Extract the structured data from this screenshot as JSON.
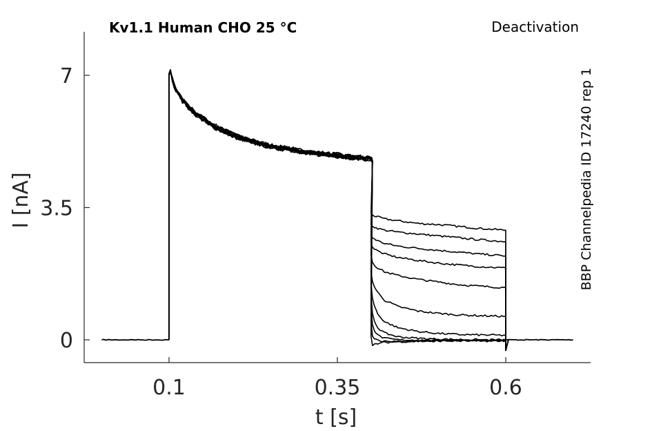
{
  "chart_data": {
    "type": "line",
    "title": "Kv1.1  Human  CHO  25 °C",
    "protocol": "Deactivation",
    "side_label": "BBP Channelpedia ID 17240 rep 1",
    "xlabel": "t [s]",
    "ylabel": "I [nA]",
    "x_ticks": [
      {
        "value": 0.1,
        "label": "0.1"
      },
      {
        "value": 0.35,
        "label": "0.35"
      },
      {
        "value": 0.6,
        "label": "0.6"
      }
    ],
    "y_ticks": [
      {
        "value": 0,
        "label": "0"
      },
      {
        "value": 3.5,
        "label": "3.5"
      },
      {
        "value": 7,
        "label": "7"
      }
    ],
    "xlim": [
      0.0,
      0.75
    ],
    "ylim": [
      -0.6,
      8.3
    ],
    "grid": false,
    "line_color": "#000000",
    "time_points": [
      0.1,
      0.102,
      0.105,
      0.11,
      0.12,
      0.14,
      0.17,
      0.2,
      0.25,
      0.3,
      0.35,
      0.4,
      0.402
    ],
    "tail_times": [
      0.4,
      0.402,
      0.405,
      0.41,
      0.42,
      0.44,
      0.47,
      0.5,
      0.53,
      0.56,
      0.6
    ],
    "series": [
      {
        "step": [
          7.05,
          7.15,
          6.9,
          6.65,
          6.35,
          6.0,
          5.65,
          5.4,
          5.15,
          5.0,
          4.9,
          4.8,
          4.75
        ],
        "tail": [
          3.35,
          3.3,
          3.28,
          3.25,
          3.2,
          3.15,
          3.08,
          3.05,
          3.0,
          2.95,
          2.9
        ]
      },
      {
        "step": [
          7.0,
          7.1,
          6.85,
          6.6,
          6.3,
          5.95,
          5.6,
          5.35,
          5.1,
          4.95,
          4.85,
          4.78,
          4.72
        ],
        "tail": [
          3.05,
          3.0,
          2.98,
          2.95,
          2.9,
          2.85,
          2.8,
          2.75,
          2.7,
          2.65,
          2.6
        ]
      },
      {
        "step": [
          7.02,
          7.12,
          6.88,
          6.62,
          6.32,
          5.97,
          5.62,
          5.37,
          5.12,
          4.97,
          4.87,
          4.79,
          4.73
        ],
        "tail": [
          2.75,
          2.7,
          2.67,
          2.62,
          2.55,
          2.48,
          2.42,
          2.37,
          2.32,
          2.27,
          2.22
        ]
      },
      {
        "step": [
          7.03,
          7.13,
          6.89,
          6.63,
          6.33,
          5.98,
          5.63,
          5.38,
          5.13,
          4.98,
          4.88,
          4.8,
          4.74
        ],
        "tail": [
          2.55,
          2.45,
          2.4,
          2.35,
          2.27,
          2.18,
          2.1,
          2.03,
          1.98,
          1.94,
          1.9
        ]
      },
      {
        "step": [
          7.01,
          7.11,
          6.87,
          6.61,
          6.31,
          5.96,
          5.61,
          5.36,
          5.11,
          4.96,
          4.86,
          4.77,
          4.71
        ],
        "tail": [
          2.25,
          2.05,
          1.98,
          1.9,
          1.8,
          1.7,
          1.6,
          1.53,
          1.46,
          1.42,
          1.38
        ]
      },
      {
        "step": [
          7.04,
          7.14,
          6.9,
          6.64,
          6.34,
          5.99,
          5.64,
          5.39,
          5.14,
          4.99,
          4.89,
          4.81,
          4.76
        ],
        "tail": [
          1.8,
          1.55,
          1.4,
          1.25,
          1.05,
          0.88,
          0.76,
          0.7,
          0.66,
          0.64,
          0.62
        ]
      },
      {
        "step": [
          7.0,
          7.1,
          6.86,
          6.6,
          6.3,
          5.95,
          5.6,
          5.35,
          5.1,
          4.95,
          4.85,
          4.76,
          4.7
        ],
        "tail": [
          1.5,
          1.1,
          0.9,
          0.68,
          0.48,
          0.32,
          0.22,
          0.17,
          0.14,
          0.13,
          0.12
        ]
      },
      {
        "step": [
          7.02,
          7.12,
          6.88,
          6.62,
          6.32,
          5.97,
          5.62,
          5.37,
          5.12,
          4.97,
          4.87,
          4.78,
          4.72
        ],
        "tail": [
          1.2,
          0.7,
          0.5,
          0.32,
          0.18,
          0.08,
          0.04,
          0.02,
          0.01,
          0.0,
          0.0
        ]
      },
      {
        "step": [
          7.03,
          7.13,
          6.89,
          6.63,
          6.33,
          5.98,
          5.63,
          5.38,
          5.13,
          4.98,
          4.88,
          4.79,
          4.73
        ],
        "tail": [
          0.9,
          0.4,
          0.25,
          0.12,
          0.04,
          0.0,
          -0.01,
          -0.01,
          -0.01,
          -0.01,
          -0.01
        ]
      },
      {
        "step": [
          7.01,
          7.11,
          6.87,
          6.61,
          6.31,
          5.96,
          5.61,
          5.36,
          5.11,
          4.96,
          4.86,
          4.77,
          4.71
        ],
        "tail": [
          0.5,
          0.1,
          0.02,
          -0.02,
          -0.04,
          -0.04,
          -0.03,
          -0.03,
          -0.02,
          -0.02,
          -0.02
        ]
      },
      {
        "step": [
          7.04,
          7.14,
          6.9,
          6.64,
          6.34,
          5.99,
          5.64,
          5.39,
          5.14,
          4.99,
          4.89,
          4.8,
          4.74
        ],
        "tail": [
          0.1,
          -0.15,
          -0.12,
          -0.1,
          -0.07,
          -0.05,
          -0.04,
          -0.03,
          -0.03,
          -0.03,
          -0.03
        ]
      }
    ],
    "baseline_segments": [
      {
        "from": 0.0,
        "to": 0.1,
        "value": 0.0
      },
      {
        "from": 0.6,
        "to": 0.7,
        "value": 0.0
      }
    ],
    "post_tail_dip": -0.28
  }
}
